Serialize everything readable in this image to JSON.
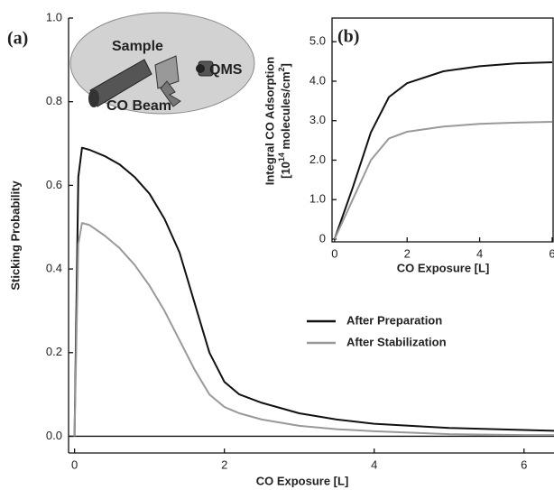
{
  "chart_data": [
    {
      "type": "line",
      "panel_label": "(a)",
      "xlabel": "CO Exposure [L]",
      "ylabel": "Sticking Probability",
      "xlim": [
        -0.08,
        6.4
      ],
      "ylim": [
        -0.04,
        1.0
      ],
      "xticks": [
        0,
        2,
        4,
        6
      ],
      "yticks": [
        {
          "value": 0,
          "label": "0.0"
        },
        {
          "value": 0.2,
          "label": "0.2"
        },
        {
          "value": 0.4,
          "label": "0.4"
        },
        {
          "value": 0.6,
          "label": "0.6"
        },
        {
          "value": 0.8,
          "label": "0.8"
        },
        {
          "value": 1.0,
          "label": "1.0"
        }
      ],
      "x": [
        0,
        0.05,
        0.1,
        0.2,
        0.4,
        0.6,
        0.8,
        1.0,
        1.2,
        1.4,
        1.6,
        1.8,
        2.0,
        2.2,
        2.5,
        3,
        3.5,
        4,
        5,
        6,
        6.4
      ],
      "series": [
        {
          "name": "After Preparation",
          "color": "#111111",
          "values": [
            0,
            0.62,
            0.69,
            0.685,
            0.67,
            0.65,
            0.62,
            0.58,
            0.52,
            0.44,
            0.32,
            0.2,
            0.13,
            0.1,
            0.08,
            0.055,
            0.04,
            0.03,
            0.02,
            0.015,
            0.013
          ]
        },
        {
          "name": "After Stabilization",
          "color": "#999999",
          "values": [
            0,
            0.46,
            0.51,
            0.505,
            0.48,
            0.45,
            0.41,
            0.36,
            0.3,
            0.23,
            0.16,
            0.1,
            0.07,
            0.055,
            0.04,
            0.025,
            0.017,
            0.012,
            0.005,
            0.003,
            0.003
          ]
        }
      ],
      "annotations": [
        "Sample",
        "QMS",
        "CO Beam"
      ]
    },
    {
      "type": "line",
      "panel_label": "(b)",
      "xlabel": "CO Exposure [L]",
      "ylabel": "Integral CO Adsorption",
      "ylabel_units": [
        "[10",
        "14",
        " molecules/cm",
        "2",
        "]"
      ],
      "xlim": [
        -0.07,
        6.05
      ],
      "ylim": [
        -0.07,
        5.6
      ],
      "xticks": [
        0,
        2,
        4,
        6
      ],
      "yticks": [
        0,
        {
          "value": 1.0,
          "label": "1.0"
        },
        {
          "value": 2.0,
          "label": "2.0"
        },
        {
          "value": 3.0,
          "label": "3.0"
        },
        {
          "value": 4.0,
          "label": "4.0"
        },
        {
          "value": 5.0,
          "label": "5.0"
        }
      ],
      "x": [
        0,
        0.5,
        1,
        1.5,
        2,
        3,
        4,
        5,
        6
      ],
      "series": [
        {
          "color": "#111111",
          "values": [
            0,
            1.3,
            2.7,
            3.6,
            3.95,
            4.25,
            4.38,
            4.45,
            4.48
          ]
        },
        {
          "color": "#999999",
          "values": [
            0,
            1.0,
            2.0,
            2.55,
            2.72,
            2.85,
            2.92,
            2.95,
            2.97
          ]
        }
      ]
    }
  ]
}
